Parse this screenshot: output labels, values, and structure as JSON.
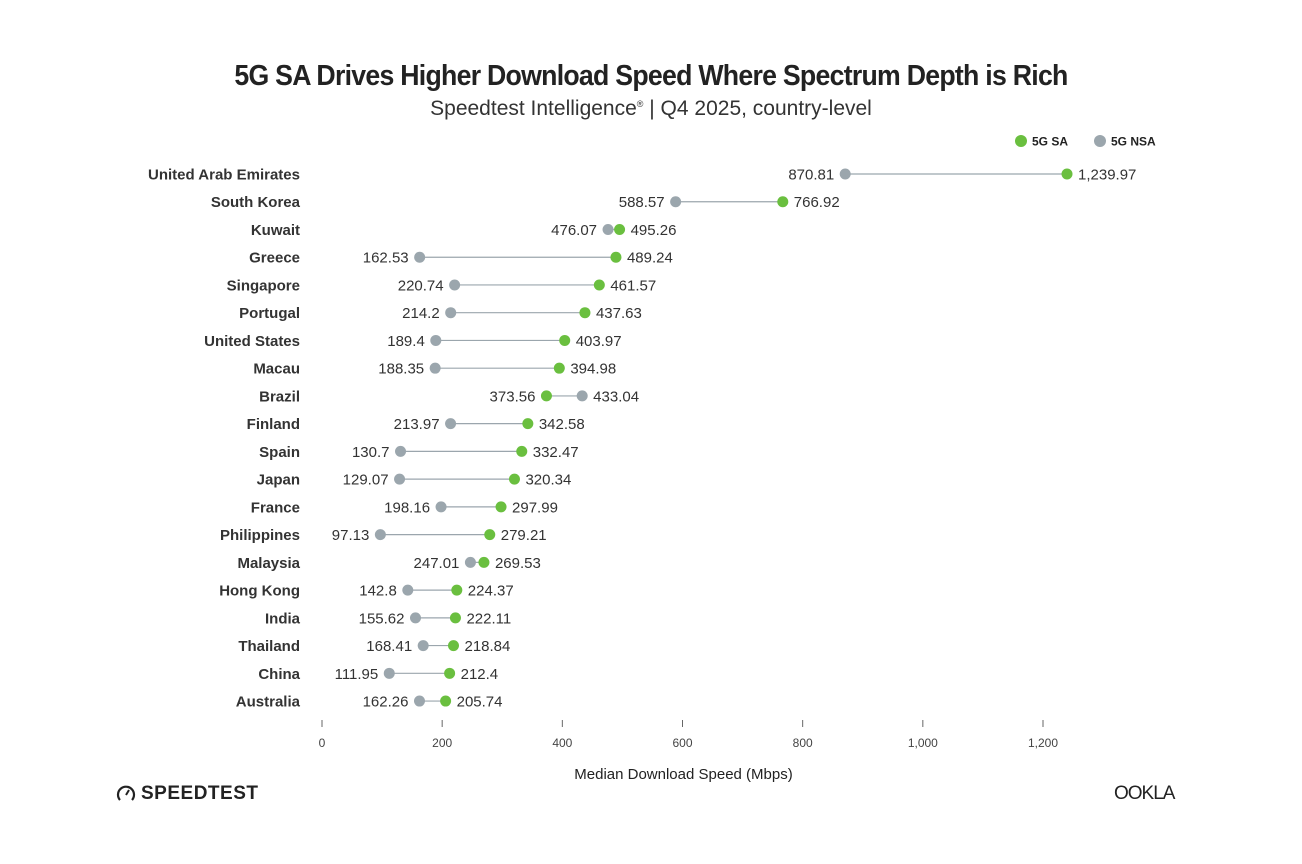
{
  "chart_data": {
    "type": "dumbbell",
    "title": "5G SA Drives Higher Download Speed Where Spectrum Depth is Rich",
    "subtitle_main": "Speedtest Intelligence",
    "subtitle_mark": "®",
    "subtitle_rest": " | Q4 2025, country-level",
    "xlabel": "Median Download Speed (Mbps)",
    "xlim": [
      0,
      1200
    ],
    "xticks": [
      0,
      200,
      400,
      600,
      800,
      1000,
      1200
    ],
    "xtick_labels": [
      "0",
      "200",
      "400",
      "600",
      "800",
      "1,000",
      "1,200"
    ],
    "legend": [
      {
        "name": "5G SA",
        "color": "#6abf3f"
      },
      {
        "name": "5G NSA",
        "color": "#9ba6ad"
      }
    ],
    "legend_position": "top-right",
    "categories": [
      "United Arab Emirates",
      "South Korea",
      "Kuwait",
      "Greece",
      "Singapore",
      "Portugal",
      "United States",
      "Macau",
      "Brazil",
      "Finland",
      "Spain",
      "Japan",
      "France",
      "Philippines",
      "Malaysia",
      "Hong Kong",
      "India",
      "Thailand",
      "China",
      "Australia"
    ],
    "series": [
      {
        "name": "5G SA",
        "values": [
          1239.97,
          766.92,
          495.26,
          489.24,
          461.57,
          437.63,
          403.97,
          394.98,
          373.56,
          342.58,
          332.47,
          320.34,
          297.99,
          279.21,
          269.53,
          224.37,
          222.11,
          218.84,
          212.4,
          205.74
        ],
        "labels": [
          "1,239.97",
          "766.92",
          "495.26",
          "489.24",
          "461.57",
          "437.63",
          "403.97",
          "394.98",
          "373.56",
          "342.58",
          "332.47",
          "320.34",
          "297.99",
          "279.21",
          "269.53",
          "224.37",
          "222.11",
          "218.84",
          "212.4",
          "205.74"
        ]
      },
      {
        "name": "5G NSA",
        "values": [
          870.81,
          588.57,
          476.07,
          162.53,
          220.74,
          214.2,
          189.4,
          188.35,
          433.04,
          213.97,
          130.7,
          129.07,
          198.16,
          97.13,
          247.01,
          142.8,
          155.62,
          168.41,
          111.95,
          162.26
        ],
        "labels": [
          "870.81",
          "588.57",
          "476.07",
          "162.53",
          "220.74",
          "214.2",
          "189.4",
          "188.35",
          "433.04",
          "213.97",
          "130.7",
          "129.07",
          "198.16",
          "97.13",
          "247.01",
          "142.8",
          "155.62",
          "168.41",
          "111.95",
          "162.26"
        ]
      }
    ]
  },
  "branding": {
    "speedtest": "SPEEDTEST",
    "ookla": "OOKLA"
  }
}
